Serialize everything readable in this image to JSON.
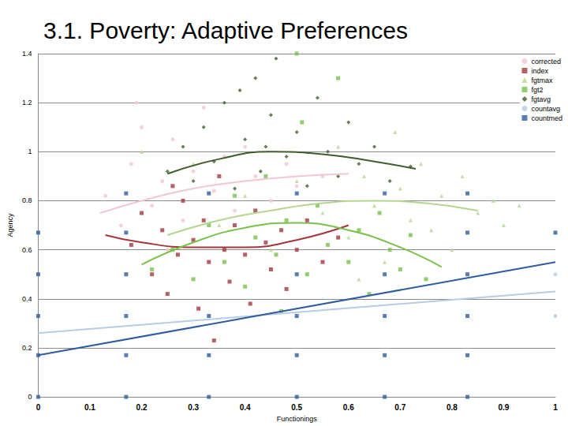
{
  "chart_data": {
    "type": "scatter",
    "title": "3.1. Poverty: Adaptive Preferences",
    "x_label": "Functionings",
    "y_label": "Agency",
    "xlim": [
      0,
      1
    ],
    "xticks": [
      0,
      0.1,
      0.2,
      0.3,
      0.4,
      0.5,
      0.6,
      0.7,
      0.8,
      0.9,
      1
    ],
    "ylim": [
      0,
      1.4
    ],
    "yticks": [
      0,
      0.2,
      0.4,
      0.6,
      0.8,
      1,
      1.2,
      1.4
    ],
    "grid": true,
    "legend": "top-right",
    "series": [
      {
        "name": "corrected",
        "color": "#f2c7cf",
        "marker": "circle",
        "x": [
          0.13,
          0.16,
          0.18,
          0.2,
          0.22,
          0.24,
          0.26,
          0.28,
          0.3,
          0.32,
          0.34,
          0.36,
          0.38,
          0.4,
          0.42,
          0.45,
          0.48,
          0.5,
          0.55,
          0.25,
          0.19
        ],
        "values": [
          0.82,
          0.7,
          0.95,
          1.1,
          0.78,
          0.88,
          1.05,
          0.72,
          0.92,
          1.18,
          0.84,
          0.98,
          0.76,
          1.02,
          0.9,
          0.8,
          0.95,
          0.86,
          0.9,
          0.6,
          1.2
        ],
        "trend_x": [
          0.12,
          0.2,
          0.3,
          0.4,
          0.5,
          0.6
        ],
        "trend_values": [
          0.75,
          0.8,
          0.85,
          0.88,
          0.9,
          0.91
        ]
      },
      {
        "name": "index",
        "color": "#a4373d",
        "marker": "square",
        "x": [
          0.18,
          0.2,
          0.22,
          0.24,
          0.25,
          0.27,
          0.28,
          0.3,
          0.31,
          0.32,
          0.33,
          0.35,
          0.36,
          0.37,
          0.38,
          0.4,
          0.41,
          0.42,
          0.44,
          0.45,
          0.47,
          0.48,
          0.5,
          0.52,
          0.55,
          0.58,
          0.34,
          0.26
        ],
        "values": [
          0.62,
          0.75,
          0.5,
          0.68,
          0.42,
          0.58,
          0.8,
          0.64,
          0.36,
          0.72,
          0.55,
          0.9,
          0.6,
          0.47,
          0.7,
          0.58,
          0.38,
          0.76,
          0.63,
          0.52,
          0.68,
          0.44,
          0.6,
          0.72,
          0.55,
          0.65,
          0.23,
          0.86
        ],
        "trend_x": [
          0.13,
          0.2,
          0.3,
          0.4,
          0.5,
          0.6
        ],
        "trend_values": [
          0.66,
          0.63,
          0.61,
          0.61,
          0.64,
          0.7
        ]
      },
      {
        "name": "fgtmax",
        "color": "#b5d68e",
        "marker": "triangle",
        "x": [
          0.3,
          0.35,
          0.4,
          0.45,
          0.5,
          0.55,
          0.58,
          0.6,
          0.63,
          0.65,
          0.67,
          0.7,
          0.72,
          0.74,
          0.76,
          0.78,
          0.8,
          0.82,
          0.85,
          0.88,
          0.9,
          0.93,
          0.69,
          0.62,
          0.2
        ],
        "values": [
          0.95,
          0.7,
          0.82,
          0.6,
          0.88,
          0.75,
          1.02,
          0.65,
          0.9,
          0.78,
          0.55,
          0.85,
          0.72,
          0.95,
          0.68,
          0.82,
          0.6,
          0.9,
          0.75,
          0.8,
          0.7,
          0.78,
          1.08,
          0.48,
          1.0
        ],
        "trend_x": [
          0.25,
          0.35,
          0.45,
          0.55,
          0.65,
          0.75,
          0.85
        ],
        "trend_values": [
          0.66,
          0.72,
          0.76,
          0.79,
          0.8,
          0.79,
          0.76
        ]
      },
      {
        "name": "fgt2",
        "color": "#78c24a",
        "marker": "square",
        "x": [
          0.22,
          0.26,
          0.3,
          0.33,
          0.36,
          0.38,
          0.4,
          0.42,
          0.44,
          0.46,
          0.48,
          0.5,
          0.52,
          0.54,
          0.56,
          0.58,
          0.6,
          0.62,
          0.64,
          0.66,
          0.68,
          0.7,
          0.72,
          0.75,
          0.47,
          0.51
        ],
        "values": [
          0.52,
          0.6,
          0.48,
          0.7,
          0.55,
          0.82,
          0.45,
          0.65,
          0.9,
          0.58,
          0.72,
          1.4,
          0.5,
          0.78,
          0.62,
          1.3,
          0.55,
          0.68,
          0.42,
          0.75,
          0.6,
          0.52,
          0.66,
          0.48,
          0.35,
          1.12
        ],
        "trend_x": [
          0.2,
          0.3,
          0.4,
          0.5,
          0.6,
          0.7,
          0.78
        ],
        "trend_values": [
          0.54,
          0.63,
          0.69,
          0.71,
          0.68,
          0.61,
          0.53
        ]
      },
      {
        "name": "fgtavg",
        "color": "#3f5e2a",
        "marker": "diamond",
        "x": [
          0.25,
          0.28,
          0.3,
          0.32,
          0.34,
          0.36,
          0.38,
          0.4,
          0.42,
          0.43,
          0.45,
          0.46,
          0.48,
          0.5,
          0.52,
          0.54,
          0.56,
          0.58,
          0.6,
          0.62,
          0.65,
          0.68,
          0.72,
          0.44,
          0.39
        ],
        "values": [
          0.92,
          1.02,
          0.88,
          1.1,
          0.96,
          1.2,
          0.85,
          1.05,
          1.3,
          0.92,
          1.15,
          1.38,
          0.98,
          1.08,
          0.86,
          1.22,
          1.0,
          0.9,
          1.12,
          0.95,
          1.02,
          0.88,
          0.94,
          1.02,
          1.25
        ],
        "trend_x": [
          0.25,
          0.35,
          0.45,
          0.55,
          0.65,
          0.73
        ],
        "trend_values": [
          0.91,
          0.97,
          1.0,
          0.99,
          0.96,
          0.93
        ]
      },
      {
        "name": "countavg",
        "color": "#b7cbe6",
        "marker": "circle",
        "x": [
          1,
          1,
          0,
          0
        ],
        "values": [
          0.5,
          0.33,
          0.67,
          0.5
        ],
        "trend_x": [
          0,
          1
        ],
        "trend_values": [
          0.26,
          0.43
        ]
      },
      {
        "name": "countmed",
        "color": "#2e5c9e",
        "marker": "square",
        "x": [
          0,
          0,
          0,
          0,
          0,
          0.17,
          0.17,
          0.17,
          0.17,
          0.17,
          0.17,
          0.33,
          0.33,
          0.33,
          0.33,
          0.5,
          0.5,
          0.5,
          0.5,
          0.5,
          0.67,
          0.67,
          0.67,
          0.67,
          0.67,
          0.83,
          0.83,
          0.83,
          0.83,
          0.83,
          0.83,
          1
        ],
        "values": [
          0.67,
          0.5,
          0.33,
          0.17,
          0,
          0.83,
          0.67,
          0.5,
          0.33,
          0.17,
          0,
          0.83,
          0.33,
          0.17,
          0,
          0.83,
          0.5,
          0.33,
          0.17,
          0,
          0.83,
          0.5,
          0.33,
          0.17,
          0,
          0.83,
          0.67,
          0.5,
          0.33,
          0.17,
          0,
          0.67
        ],
        "trend_x": [
          0,
          1
        ],
        "trend_values": [
          0.17,
          0.55
        ]
      }
    ]
  }
}
